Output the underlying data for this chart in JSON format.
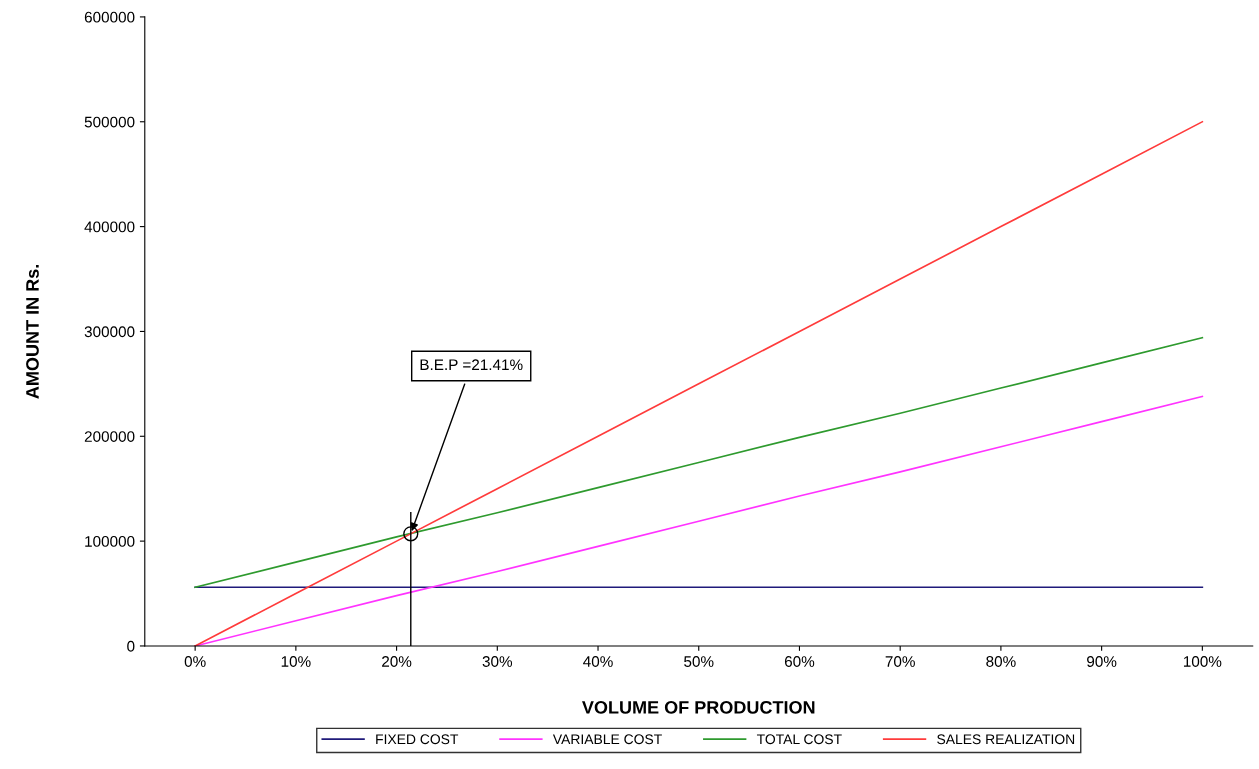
{
  "chart_data": {
    "type": "line",
    "xlabel": "VOLUME OF PRODUCTION",
    "ylabel": "AMOUNT IN Rs.",
    "x": [
      0,
      10,
      20,
      30,
      40,
      50,
      60,
      70,
      80,
      90,
      100
    ],
    "xlim": [
      -5,
      105
    ],
    "xticks": [
      {
        "value": 0,
        "label": "0%"
      },
      {
        "value": 10,
        "label": "10%"
      },
      {
        "value": 20,
        "label": "20%"
      },
      {
        "value": 30,
        "label": "30%"
      },
      {
        "value": 40,
        "label": "40%"
      },
      {
        "value": 50,
        "label": "50%"
      },
      {
        "value": 60,
        "label": "60%"
      },
      {
        "value": 70,
        "label": "70%"
      },
      {
        "value": 80,
        "label": "80%"
      },
      {
        "value": 90,
        "label": "90%"
      },
      {
        "value": 100,
        "label": "100%"
      }
    ],
    "ylim": [
      0,
      600000
    ],
    "yticks": [
      0,
      100000,
      200000,
      300000,
      400000,
      500000,
      600000
    ],
    "series": [
      {
        "name": "FIXED COST",
        "color": "#1f1a7a",
        "values": [
          56000,
          56000,
          56000,
          56000,
          56000,
          56000,
          56000,
          56000,
          56000,
          56000,
          56000
        ]
      },
      {
        "name": "VARIABLE COST",
        "color": "#ff33ff",
        "values": [
          0,
          24000,
          48000,
          71000,
          95000,
          119000,
          143000,
          166000,
          190000,
          214000,
          238000
        ]
      },
      {
        "name": "TOTAL COST",
        "color": "#2e9a2e",
        "values": [
          56000,
          80000,
          104000,
          127000,
          151000,
          175000,
          199000,
          222000,
          246000,
          270000,
          294000
        ]
      },
      {
        "name": "SALES REALIZATION",
        "color": "#ff3b3b",
        "values": [
          0,
          50000,
          100000,
          150000,
          200000,
          250000,
          300000,
          350000,
          400000,
          450000,
          500000
        ]
      }
    ],
    "annotations": [
      {
        "text": "B.E.P =21.41%",
        "x": 21.41,
        "y": 107000
      }
    ],
    "ref_lines": [
      {
        "axis": "x",
        "value": 21.41,
        "color": "#000000"
      }
    ],
    "grid": false,
    "legend": "bottom",
    "marker": "none",
    "line_style": "solid"
  }
}
